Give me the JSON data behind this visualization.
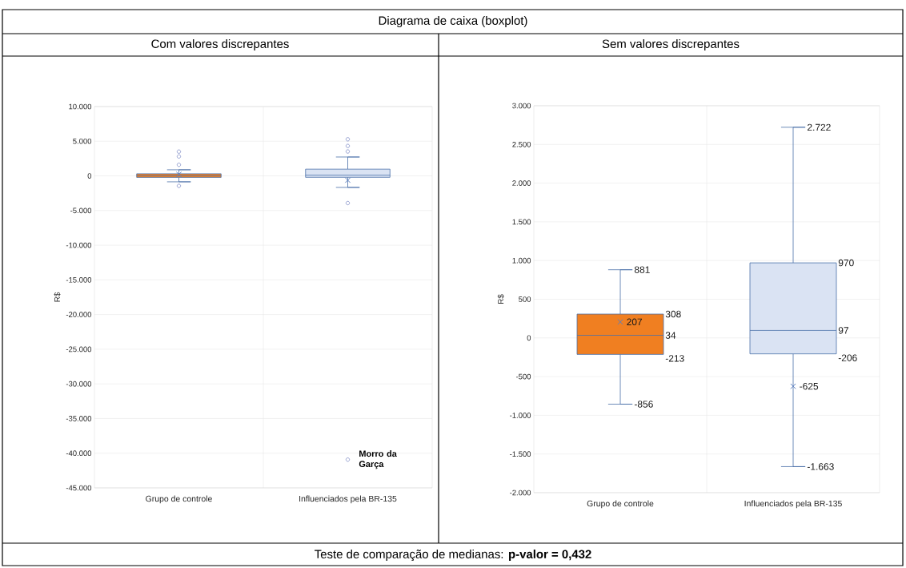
{
  "chart_data": [
    {
      "type": "box",
      "title": "Com valores discrepantes",
      "ylabel": "R$",
      "categories": [
        "Grupo de controle",
        "Influenciados pela BR-135"
      ],
      "boxes": [
        {
          "low": -856,
          "q1": -213,
          "median": 34,
          "q3": 308,
          "high": 881,
          "mean": 207,
          "outliers": [
            3500,
            2800,
            1600,
            -1440
          ]
        },
        {
          "low": -1663,
          "q1": -206,
          "median": 97,
          "q3": 970,
          "high": 2722,
          "mean": -625,
          "outliers": [
            5280,
            4320,
            3520,
            -3920,
            -40920
          ]
        }
      ],
      "colors": [
        "#f07f21",
        "#dae3f3"
      ],
      "ylim": [
        -45000,
        10000
      ],
      "yticks": [
        {
          "value": 10000,
          "label": "10.000"
        },
        {
          "value": 5000,
          "label": "5.000"
        },
        0,
        {
          "value": -5000,
          "label": "-5.000"
        },
        {
          "value": -10000,
          "label": "-10.000"
        },
        {
          "value": -15000,
          "label": "-15.000"
        },
        {
          "value": -20000,
          "label": "-20.000"
        },
        {
          "value": -25000,
          "label": "-25.000"
        },
        {
          "value": -30000,
          "label": "-30.000"
        },
        {
          "value": -35000,
          "label": "-35.000"
        },
        {
          "value": -40000,
          "label": "-40.000"
        },
        {
          "value": -45000,
          "label": "-45.000"
        }
      ],
      "grid": true,
      "annotations": [
        "Diagrama de caixa (boxplot)",
        "Morro da Garça"
      ]
    },
    {
      "type": "box",
      "title": "Sem valores discrepantes",
      "ylabel": "R$",
      "categories": [
        "Grupo de controle",
        "Influenciados pela BR-135"
      ],
      "boxes": [
        {
          "low": -856,
          "q1": -213,
          "median": 34,
          "q3": 308,
          "high": 881,
          "mean": 207
        },
        {
          "low": -1663,
          "q1": -206,
          "median": 97,
          "q3": 970,
          "high": 2722,
          "mean": -625
        }
      ],
      "colors": [
        "#f07f21",
        "#dae3f3"
      ],
      "ylim": [
        -2000,
        3000
      ],
      "yticks": [
        {
          "value": 3000,
          "label": "3.000"
        },
        {
          "value": 2500,
          "label": "2.500"
        },
        {
          "value": 2000,
          "label": "2.000"
        },
        {
          "value": 1500,
          "label": "1.500"
        },
        {
          "value": 1000,
          "label": "1.000"
        },
        500,
        0,
        -500,
        {
          "value": -1000,
          "label": "-1.000"
        },
        {
          "value": -1500,
          "label": "-1.500"
        },
        {
          "value": -2000,
          "label": "-2.000"
        }
      ],
      "grid": true,
      "annotations": [
        "Teste de comparação de medianas: **p-valor = 0,432**",
        "881",
        "308",
        "207",
        "34",
        "-213",
        "-856",
        "2.722",
        "970",
        "-625",
        "97",
        "-206",
        "-1.663"
      ]
    }
  ]
}
